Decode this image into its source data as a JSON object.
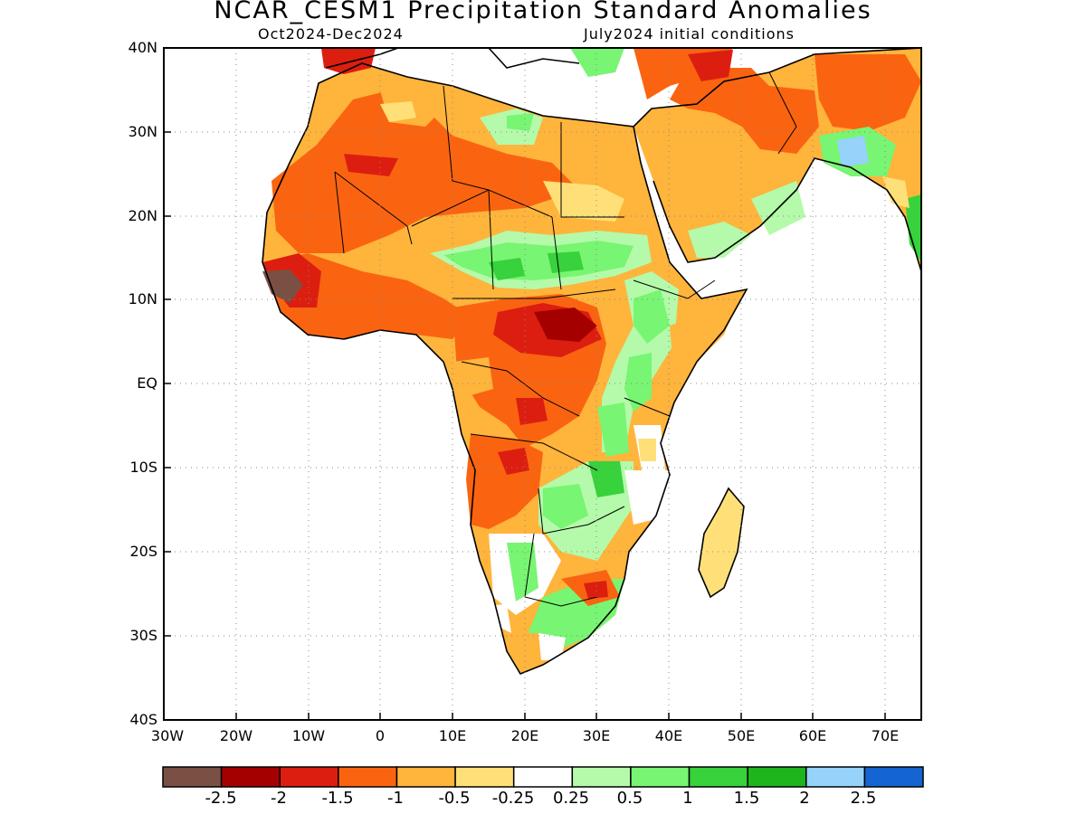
{
  "header": {
    "title": "NCAR_CESM1 Precipitation Standard Anomalies",
    "period": "Oct2024-Dec2024",
    "init": "July2024 initial conditions"
  },
  "axes": {
    "lat_labels": [
      "40N",
      "30N",
      "20N",
      "10N",
      "EQ",
      "10S",
      "20S",
      "30S",
      "40S"
    ],
    "lon_labels": [
      "30W",
      "20W",
      "10W",
      "0",
      "10E",
      "20E",
      "30E",
      "40E",
      "50E",
      "60E",
      "70E"
    ],
    "lat_range": [
      -40,
      40
    ],
    "lon_range": [
      -30,
      75
    ]
  },
  "colorbar": {
    "colors": [
      "#7a5044",
      "#a50000",
      "#dc1e10",
      "#fa6410",
      "#ffb43c",
      "#ffe078",
      "#ffffff",
      "#b4faaa",
      "#78f572",
      "#37d23c",
      "#1eb41e",
      "#96d2fa",
      "#1464d2"
    ],
    "labels": [
      "-2.5",
      "-2",
      "-1.5",
      "-1",
      "-0.5",
      "-0.25",
      "0.25",
      "0.5",
      "1",
      "1.5",
      "2",
      "2.5"
    ]
  }
}
